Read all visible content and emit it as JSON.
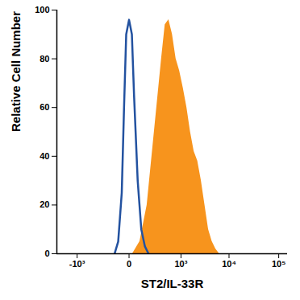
{
  "chart_data": {
    "type": "histogram_overlay",
    "xlabel": "ST2/IL-33R",
    "ylabel": "Relative Cell Number",
    "log": "x",
    "xlim": [
      -2700,
      150000
    ],
    "xticks": [
      {
        "value": -1000,
        "label": "-10³"
      },
      0,
      {
        "value": 1000,
        "label": "10³"
      },
      {
        "value": 10000,
        "label": "10⁴"
      },
      {
        "value": 100000,
        "label": "10⁵"
      }
    ],
    "ylim": [
      0,
      100
    ],
    "yticks": [
      0,
      20,
      40,
      60,
      80,
      100
    ],
    "series": [
      {
        "type": "area",
        "color": "#f7941d",
        "x": [
          18,
          65,
          130,
          221,
          348,
          429,
          526,
          639,
          773,
          931,
          1118,
          1340,
          1600,
          1909,
          2273,
          2700,
          3212,
          3812,
          4518,
          5360,
          6350
        ],
        "values": [
          0,
          5,
          20,
          50,
          80,
          94,
          96,
          90,
          80,
          75,
          68,
          60,
          50,
          42,
          38,
          30,
          20,
          10,
          5,
          2,
          0
        ]
      },
      {
        "type": "line",
        "color": "#2352a0",
        "x": [
          -95,
          -65,
          -40,
          -26,
          -14,
          0,
          14,
          26,
          49,
          76,
          108,
          146
        ],
        "values": [
          0,
          5,
          25,
          60,
          90,
          96,
          90,
          65,
          30,
          10,
          3,
          0
        ]
      }
    ]
  }
}
